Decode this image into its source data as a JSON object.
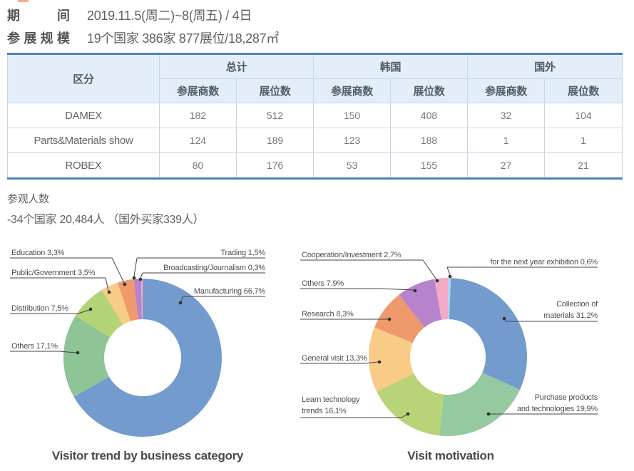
{
  "decoration": {
    "top_accent_color": "#f2b08c"
  },
  "header": {
    "period_label": "期 间",
    "period_value": "2019.11.5(周二)~8(周五) / 4日",
    "scale_label": "参展规模",
    "scale_value": "19个国家 386家 877展位/18,287㎡"
  },
  "table": {
    "col_group_label": "区分",
    "group_total": "总计",
    "group_korea": "韩国",
    "group_foreign": "国外",
    "sub_exhibitors": "参展商数",
    "sub_booths": "展位数",
    "rows": [
      {
        "name": "DAMEX",
        "cells": [
          "182",
          "512",
          "150",
          "408",
          "32",
          "104"
        ]
      },
      {
        "name": "Parts&Materials show",
        "cells": [
          "124",
          "189",
          "123",
          "188",
          "1",
          "1"
        ]
      },
      {
        "name": "ROBEX",
        "cells": [
          "80",
          "176",
          "53",
          "155",
          "27",
          "21"
        ]
      }
    ]
  },
  "visitors": {
    "title": "参观人数",
    "detail": "-34个国家 20,484人 （国外买家339人）"
  },
  "chart_data": [
    {
      "type": "pie",
      "donut": true,
      "title": "Visitor trend by business category",
      "start_angle_deg": 0,
      "direction": "clockwise",
      "legend_position": "callout-labels",
      "slices": [
        {
          "label": "Manufacturing",
          "value": 66.7,
          "display": "Manufacturing 66,7%",
          "color": "#739bce"
        },
        {
          "label": "Others",
          "value": 17.1,
          "display": "Others 17,1%",
          "color": "#8ec496"
        },
        {
          "label": "Distribution",
          "value": 7.5,
          "display": "Distribution 7,5%",
          "color": "#b3d377"
        },
        {
          "label": "Public/Government",
          "value": 3.5,
          "display": "Public/Government 3,5%",
          "color": "#f8cb86"
        },
        {
          "label": "Education",
          "value": 3.3,
          "display": "Education 3,3%",
          "color": "#ee9a6d"
        },
        {
          "label": "Trading",
          "value": 1.5,
          "display": "Trading 1,5%",
          "color": "#b783cd"
        },
        {
          "label": "Broadcasting/Journalism",
          "value": 0.3,
          "display": "Broadcasting/Journalism 0,3%",
          "color": "#f2a9c6"
        }
      ]
    },
    {
      "type": "pie",
      "donut": true,
      "title": "Visit motivation",
      "start_angle_deg": 0,
      "direction": "clockwise",
      "legend_position": "callout-labels",
      "slices": [
        {
          "label": "for the next year exhibition",
          "value": 0.6,
          "display": "for the next year exhibition 0,6%",
          "color": "#a9d7f0"
        },
        {
          "label": "Collection of materials",
          "value": 31.2,
          "display_lines": [
            "Collection of",
            "materials 31,2%"
          ],
          "color": "#739bce"
        },
        {
          "label": "Purchase products and technologies",
          "value": 19.9,
          "display_lines": [
            "Purchase products",
            "and technologies 19,9%"
          ],
          "color": "#95c9a0"
        },
        {
          "label": "Learn technology trends",
          "value": 16.1,
          "display_lines": [
            "Learn technology",
            "trends 16,1%"
          ],
          "color": "#b8d378"
        },
        {
          "label": "General visit",
          "value": 13.3,
          "display": "General visit 13,3%",
          "color": "#f8cb86"
        },
        {
          "label": "Research",
          "value": 8.3,
          "display": "Research 8,3%",
          "color": "#ee9a6d"
        },
        {
          "label": "Others",
          "value": 7.9,
          "display": "Others 7,9%",
          "color": "#b783cd"
        },
        {
          "label": "Cooperation/Investment",
          "value": 2.7,
          "display": "Cooperation/Investment 2,7%",
          "color": "#f2a9c6"
        }
      ]
    }
  ]
}
